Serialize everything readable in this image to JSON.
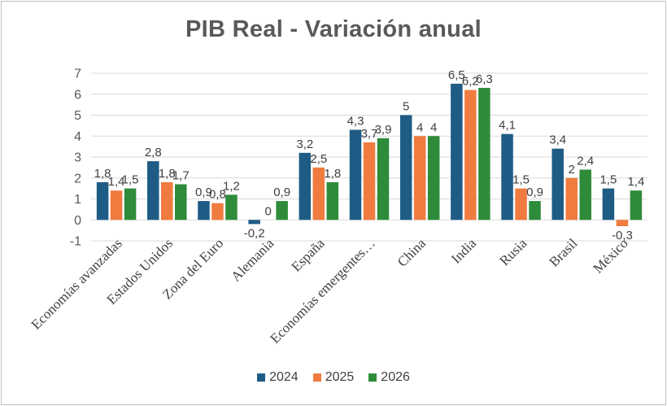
{
  "chart_data": {
    "type": "bar",
    "title": "PIB Real - Variación anual",
    "xlabel": "",
    "ylabel": "",
    "ylim": [
      -1,
      7
    ],
    "yticks": [
      "-1",
      "0",
      "1",
      "2",
      "3",
      "4",
      "5",
      "6",
      "7"
    ],
    "grid": true,
    "legend_position": "bottom",
    "categories": [
      "Economías avanzadas",
      "Estados Unidos",
      "Zona del Euro",
      "Alemania",
      "España",
      "Economías emergentes…",
      "China",
      "India",
      "Rusia",
      "Brasil",
      "México"
    ],
    "series": [
      {
        "name": "2024",
        "color": "#1f5c85",
        "values": [
          1.8,
          2.8,
          0.9,
          -0.2,
          3.2,
          4.3,
          5,
          6.5,
          4.1,
          3.4,
          1.5
        ],
        "labels": [
          "1,8",
          "2,8",
          "0,9",
          "-0,2",
          "3,2",
          "4,3",
          "5",
          "6,5",
          "4,1",
          "3,4",
          "1,5"
        ]
      },
      {
        "name": "2025",
        "color": "#f07b3f",
        "values": [
          1.4,
          1.8,
          0.8,
          0,
          2.5,
          3.7,
          4,
          6.2,
          1.5,
          2,
          -0.3
        ],
        "labels": [
          "1,4",
          "1,8",
          "0,8",
          "0",
          "2,5",
          "3,7",
          "4",
          "6,2",
          "1,5",
          "2",
          "-0,3"
        ]
      },
      {
        "name": "2026",
        "color": "#2e8b3a",
        "values": [
          1.5,
          1.7,
          1.2,
          0.9,
          1.8,
          3.9,
          4,
          6.3,
          0.9,
          2.4,
          1.4
        ],
        "labels": [
          "1,5",
          "1,7",
          "1,2",
          "0,9",
          "1,8",
          "3,9",
          "4",
          "6,3",
          "0,9",
          "2,4",
          "1,4"
        ]
      }
    ]
  }
}
